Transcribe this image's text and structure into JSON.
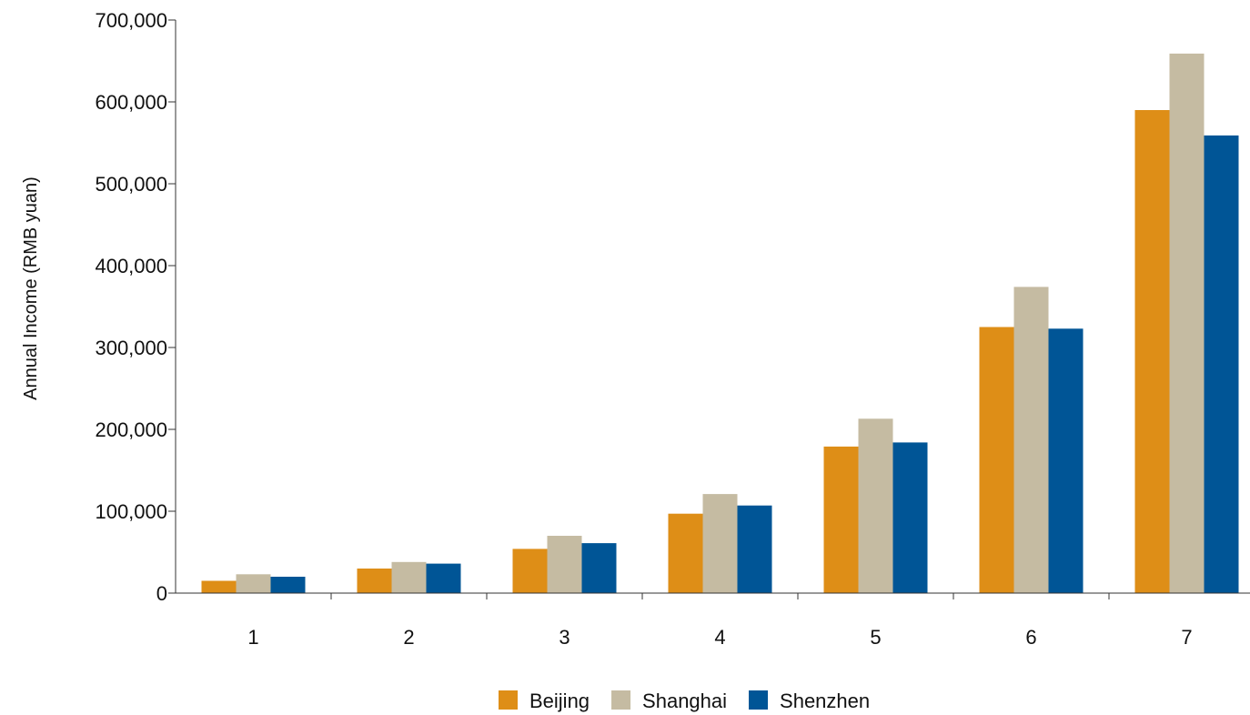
{
  "chart_data": {
    "type": "bar",
    "title": "",
    "xlabel": "",
    "ylabel": "Annual Income (RMB yuan)",
    "categories": [
      "1",
      "2",
      "3",
      "4",
      "5",
      "6",
      "7"
    ],
    "ylim": [
      0,
      700000
    ],
    "yticks": [
      0,
      100000,
      200000,
      300000,
      400000,
      500000,
      600000,
      700000
    ],
    "ytick_labels": [
      "0",
      "100,000",
      "200,000",
      "300,000",
      "400,000",
      "500,000",
      "600,000",
      "700,000"
    ],
    "grid": false,
    "legend_position": "bottom-center",
    "series": [
      {
        "name": "Beijing",
        "color": "#DE8E17",
        "values": [
          15000,
          30000,
          54000,
          97000,
          179000,
          325000,
          590000
        ]
      },
      {
        "name": "Shanghai",
        "color": "#C5BBA2",
        "values": [
          23000,
          38000,
          70000,
          121000,
          213000,
          374000,
          659000
        ]
      },
      {
        "name": "Shenzhen",
        "color": "#005596",
        "values": [
          20000,
          36000,
          61000,
          107000,
          184000,
          323000,
          559000
        ]
      }
    ]
  }
}
